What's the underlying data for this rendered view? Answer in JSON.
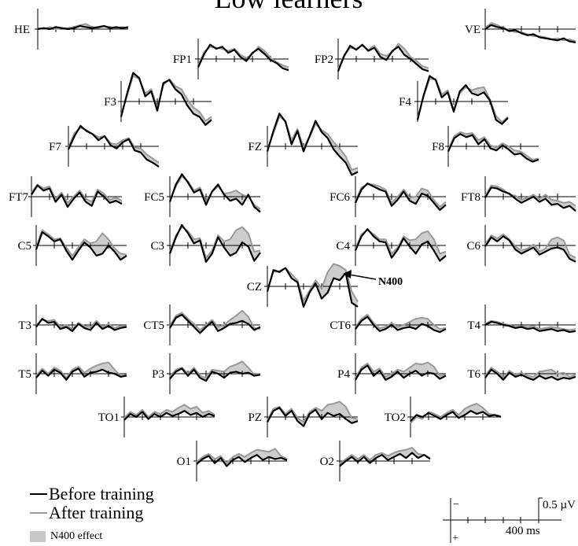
{
  "chart_data": {
    "type": "line",
    "title": "Low learners",
    "series": [
      {
        "name": "Before training",
        "color": "#000000"
      },
      {
        "name": "After training",
        "color": "#999999"
      }
    ],
    "shading": {
      "name": "N400 effect",
      "color": "#c8c8c8"
    },
    "annotation": "N400",
    "scale": {
      "amplitude_label": "0.5 µV",
      "time_label": "400 ms",
      "negative_sign": "−",
      "positive_sign": "+",
      "polarity": "negative up"
    },
    "channels": [
      {
        "name": "HE",
        "before": [
          0,
          0.1,
          0,
          0.2,
          0.1,
          0,
          0.1,
          0.3,
          0.2,
          0.1,
          0.2,
          0.3,
          0.1,
          0.2,
          0.1,
          0.2
        ],
        "after": [
          0.1,
          0,
          0.2,
          0,
          0.1,
          0.1,
          0.2,
          0.4,
          0.5,
          0.2,
          0.1,
          0.3,
          0.2,
          0.1,
          0.2,
          0.1
        ]
      },
      {
        "name": "VE",
        "before": [
          0,
          0.4,
          0.2,
          0.1,
          -0.2,
          -0.1,
          -0.4,
          -0.6,
          -0.5,
          -0.8,
          -0.9,
          -1.0,
          -1.1,
          -0.9,
          -1.2,
          -1.3
        ],
        "after": [
          0.1,
          0.6,
          0.4,
          0.1,
          -0.1,
          -0.3,
          -0.3,
          -0.5,
          -0.7,
          -0.7,
          -0.8,
          -1.0,
          -0.9,
          -1.1,
          -1.0,
          -1.2
        ]
      },
      {
        "name": "FP1",
        "before": [
          -0.8,
          0.5,
          1.4,
          1.0,
          1.2,
          0.6,
          0.9,
          0.2,
          -0.2,
          0.6,
          1.0,
          0.5,
          -0.1,
          -0.4,
          -0.9,
          -1.1
        ],
        "after": [
          -0.6,
          0.7,
          1.2,
          1.1,
          1.0,
          0.8,
          1.0,
          0.4,
          0.1,
          0.5,
          1.2,
          0.8,
          0.1,
          -0.3,
          -0.6,
          -0.8
        ]
      },
      {
        "name": "FP2",
        "before": [
          -1.2,
          0.3,
          1.3,
          0.9,
          1.4,
          0.8,
          1.1,
          0.2,
          -0.1,
          0.8,
          1.2,
          0.4,
          0.0,
          -0.5,
          -1.0,
          -1.2
        ],
        "after": [
          -1.0,
          0.4,
          1.1,
          1.0,
          1.3,
          0.9,
          1.3,
          0.5,
          0.3,
          0.7,
          1.5,
          1.0,
          0.2,
          -0.2,
          -0.7,
          -0.9
        ]
      },
      {
        "name": "F3",
        "before": [
          -1.5,
          0.8,
          2.8,
          2.3,
          0.5,
          1.0,
          -0.9,
          1.8,
          2.1,
          1.2,
          0.7,
          -0.4,
          -1.2,
          -1.5,
          -2.3,
          -1.8
        ],
        "after": [
          -1.3,
          0.6,
          2.5,
          2.2,
          0.8,
          1.2,
          -0.6,
          1.6,
          2.2,
          1.5,
          1.2,
          0.2,
          -0.6,
          -1.0,
          -1.9,
          -1.5
        ]
      },
      {
        "name": "F4",
        "before": [
          -1.8,
          0.6,
          2.5,
          2.1,
          0.4,
          0.9,
          -1.0,
          1.0,
          1.6,
          0.8,
          0.6,
          0.9,
          0.1,
          -1.8,
          -2.2,
          -1.6
        ],
        "after": [
          -1.6,
          0.5,
          2.2,
          2.2,
          0.7,
          1.1,
          -0.8,
          0.8,
          1.4,
          1.1,
          1.3,
          1.4,
          0.2,
          -1.4,
          -2.0,
          -1.5
        ]
      },
      {
        "name": "F7",
        "before": [
          -0.3,
          1.0,
          2.0,
          1.5,
          1.2,
          0.6,
          1.0,
          0.1,
          -0.2,
          0.4,
          0.7,
          -0.4,
          -0.6,
          -1.3,
          -1.6,
          -2.0
        ],
        "after": [
          -0.1,
          1.3,
          1.8,
          1.6,
          1.2,
          0.9,
          1.0,
          0.3,
          0.2,
          0.6,
          0.8,
          -0.1,
          -0.2,
          -0.8,
          -1.2,
          -1.6
        ]
      },
      {
        "name": "F8",
        "before": [
          -0.5,
          0.8,
          1.2,
          0.9,
          1.1,
          0.2,
          0.7,
          -0.2,
          -0.4,
          0.1,
          -0.3,
          -0.8,
          -0.7,
          -1.2,
          -1.5,
          -1.3
        ],
        "after": [
          -0.3,
          1.0,
          1.4,
          1.2,
          1.3,
          0.6,
          0.9,
          0.1,
          -0.1,
          0.3,
          0.0,
          -0.4,
          -0.5,
          -0.9,
          -1.3,
          -1.2
        ]
      },
      {
        "name": "FZ",
        "before": [
          -0.5,
          1.5,
          3.2,
          2.4,
          0.2,
          1.5,
          -0.5,
          1.0,
          2.5,
          1.4,
          0.8,
          -0.3,
          -1.0,
          -1.6,
          -2.8,
          -2.5
        ],
        "after": [
          -0.3,
          1.3,
          2.9,
          2.5,
          0.6,
          1.7,
          -0.1,
          0.9,
          2.2,
          1.6,
          1.2,
          0.4,
          -0.2,
          -1.0,
          -2.3,
          -2.1
        ]
      },
      {
        "name": "FT7",
        "before": [
          0.2,
          1.1,
          0.6,
          0.8,
          -0.5,
          0.2,
          -1.0,
          -0.2,
          0.4,
          -0.5,
          -0.9,
          0.5,
          0.0,
          -0.6,
          -0.4,
          -0.7
        ],
        "after": [
          0.4,
          1.2,
          0.8,
          1.0,
          -0.2,
          0.4,
          -0.6,
          0.0,
          0.6,
          -0.2,
          -0.5,
          0.7,
          0.3,
          -0.3,
          -0.1,
          -0.4
        ]
      },
      {
        "name": "FC5",
        "before": [
          -0.5,
          1.2,
          2.2,
          1.4,
          0.4,
          0.7,
          -0.8,
          0.5,
          1.2,
          0.2,
          -0.4,
          -0.2,
          -0.8,
          0.2,
          -1.0,
          -1.5
        ],
        "after": [
          -0.3,
          1.0,
          2.0,
          1.5,
          0.6,
          0.9,
          -0.5,
          0.5,
          1.0,
          0.3,
          0.4,
          0.6,
          0.2,
          0.0,
          -0.8,
          -1.2
        ]
      },
      {
        "name": "FC6",
        "before": [
          -0.6,
          0.7,
          1.3,
          1.0,
          0.7,
          0.5,
          -0.9,
          -0.3,
          0.5,
          -0.4,
          -0.7,
          0.3,
          0.1,
          -0.6,
          -1.3,
          -0.8
        ],
        "after": [
          -0.4,
          0.9,
          1.2,
          1.2,
          1.0,
          0.7,
          -0.6,
          0.0,
          0.7,
          -0.1,
          0.0,
          0.8,
          0.6,
          -0.3,
          -1.0,
          -0.5
        ]
      },
      {
        "name": "FT8",
        "before": [
          -0.1,
          0.9,
          0.8,
          0.5,
          0.3,
          -0.2,
          -0.6,
          -0.3,
          0.0,
          -0.5,
          -0.2,
          -0.8,
          -0.7,
          -1.1,
          -0.9,
          -1.4
        ],
        "after": [
          0.1,
          1.1,
          1.0,
          0.7,
          0.2,
          0.1,
          -0.3,
          -0.1,
          0.2,
          -0.2,
          0.2,
          -0.3,
          -0.4,
          -0.6,
          -0.5,
          -0.9
        ]
      },
      {
        "name": "C5",
        "before": [
          -0.4,
          1.3,
          0.9,
          0.4,
          0.6,
          -0.5,
          -1.4,
          -0.5,
          0.3,
          -0.2,
          -1.0,
          -0.8,
          0.0,
          -0.6,
          -1.4,
          -1.0
        ],
        "after": [
          -0.2,
          1.5,
          1.1,
          0.6,
          0.7,
          -0.2,
          -1.0,
          -0.2,
          0.6,
          0.2,
          0.4,
          1.2,
          0.6,
          -0.3,
          -0.8,
          -0.9
        ]
      },
      {
        "name": "C3",
        "before": [
          -0.8,
          0.8,
          2.0,
          1.2,
          0.2,
          0.5,
          -1.6,
          -0.8,
          0.8,
          -0.2,
          -1.0,
          -0.7,
          0.3,
          -0.1,
          -1.5,
          -0.7
        ],
        "after": [
          -0.6,
          1.0,
          1.8,
          1.4,
          0.6,
          0.7,
          -1.2,
          -0.5,
          1.0,
          0.4,
          0.6,
          1.5,
          1.8,
          1.2,
          -0.6,
          -0.5
        ]
      },
      {
        "name": "C4",
        "before": [
          -0.5,
          0.9,
          1.6,
          0.9,
          0.4,
          0.3,
          -1.2,
          -0.4,
          0.7,
          -0.1,
          -0.8,
          0.1,
          0.4,
          -0.5,
          -1.5,
          -1.0
        ],
        "after": [
          -0.3,
          1.1,
          1.5,
          1.1,
          0.6,
          0.6,
          -0.8,
          -0.2,
          0.9,
          0.5,
          0.6,
          1.2,
          1.4,
          0.6,
          -0.8,
          -0.6
        ]
      },
      {
        "name": "C6",
        "before": [
          -0.1,
          0.8,
          0.4,
          0.9,
          0.5,
          -0.4,
          -0.8,
          -0.5,
          -0.2,
          -0.9,
          -0.6,
          -0.3,
          -0.2,
          -0.4,
          -1.3,
          -1.6
        ],
        "after": [
          0.1,
          1.0,
          0.7,
          1.1,
          0.6,
          -0.1,
          -0.5,
          -0.3,
          0.1,
          -0.6,
          -0.3,
          0.6,
          0.8,
          0.5,
          -0.9,
          -1.2
        ]
      },
      {
        "name": "CZ",
        "before": [
          -0.5,
          1.6,
          1.4,
          1.8,
          0.8,
          0.4,
          -2.0,
          -0.6,
          0.3,
          -1.2,
          -0.6,
          0.8,
          0.6,
          1.3,
          -1.6,
          -2.0
        ],
        "after": [
          -0.3,
          1.4,
          1.5,
          1.8,
          1.2,
          0.6,
          -1.4,
          -0.4,
          0.6,
          -0.2,
          1.4,
          2.2,
          2.0,
          1.6,
          -0.5,
          -1.5
        ]
      },
      {
        "name": "T3",
        "before": [
          -0.2,
          0.6,
          0.2,
          0.3,
          -0.4,
          -0.2,
          -0.6,
          0.1,
          -0.3,
          -0.5,
          0.2,
          -0.4,
          -0.1,
          -0.5,
          -0.3,
          -0.2
        ],
        "after": [
          0.0,
          0.5,
          0.4,
          0.5,
          -0.2,
          0.0,
          -0.4,
          0.2,
          -0.1,
          -0.2,
          0.4,
          -0.2,
          0.1,
          -0.3,
          -0.1,
          -0.1
        ]
      },
      {
        "name": "CT5",
        "before": [
          -0.3,
          0.7,
          1.0,
          0.4,
          -0.2,
          -0.8,
          -0.2,
          0.3,
          -0.6,
          -0.3,
          0.1,
          0.2,
          0.4,
          0.1,
          -0.5,
          -0.2
        ],
        "after": [
          -0.1,
          0.9,
          1.2,
          0.6,
          0.1,
          -0.5,
          0.0,
          0.5,
          -0.2,
          0.0,
          0.5,
          0.9,
          1.4,
          0.8,
          -0.3,
          -0.4
        ]
      },
      {
        "name": "CT6",
        "before": [
          -0.4,
          0.4,
          0.8,
          0.0,
          -0.6,
          -0.4,
          0.0,
          -0.5,
          -0.3,
          -0.2,
          -0.4,
          0.1,
          -0.1,
          -0.5,
          -0.7,
          -0.4
        ],
        "after": [
          -0.2,
          0.6,
          1.0,
          0.2,
          -0.3,
          -0.2,
          0.2,
          -0.2,
          0.0,
          0.3,
          0.6,
          0.7,
          0.6,
          0.0,
          -0.4,
          -0.3
        ]
      },
      {
        "name": "T4",
        "before": [
          0.0,
          0.3,
          0.2,
          0.0,
          -0.1,
          -0.3,
          -0.2,
          -0.4,
          -0.3,
          -0.6,
          -0.5,
          -0.4,
          -0.6,
          -0.5,
          -0.7,
          -0.6
        ],
        "after": [
          0.1,
          0.4,
          0.3,
          0.1,
          0.0,
          -0.2,
          -0.1,
          -0.2,
          -0.1,
          -0.4,
          -0.3,
          -0.2,
          -0.3,
          -0.4,
          -0.5,
          -0.4
        ]
      },
      {
        "name": "T5",
        "before": [
          -0.4,
          0.3,
          -0.2,
          0.4,
          0.1,
          -0.6,
          0.2,
          0.5,
          -0.3,
          0.1,
          0.2,
          0.4,
          0.1,
          0.0,
          -0.3,
          -0.2
        ],
        "after": [
          -0.2,
          0.5,
          0.0,
          0.6,
          0.3,
          -0.4,
          0.4,
          0.7,
          0.1,
          0.5,
          0.8,
          1.0,
          1.1,
          0.4,
          -0.2,
          -0.1
        ]
      },
      {
        "name": "P3",
        "before": [
          -0.5,
          0.2,
          0.5,
          -0.2,
          0.4,
          -0.4,
          -0.7,
          0.2,
          0.0,
          -0.4,
          0.1,
          0.2,
          0.0,
          0.1,
          -0.2,
          -0.1
        ],
        "after": [
          -0.3,
          0.4,
          0.6,
          0.0,
          0.6,
          -0.2,
          -0.4,
          0.4,
          0.3,
          0.2,
          0.7,
          0.9,
          1.2,
          0.6,
          -0.1,
          0.0
        ]
      },
      {
        "name": "P4",
        "before": [
          -0.6,
          0.4,
          0.8,
          -0.2,
          0.3,
          -0.6,
          -0.3,
          0.2,
          -0.4,
          0.0,
          0.3,
          -0.2,
          0.1,
          0.0,
          -0.5,
          -0.2
        ],
        "after": [
          -0.4,
          0.6,
          1.0,
          0.2,
          0.5,
          -0.3,
          0.0,
          0.4,
          0.2,
          0.6,
          1.0,
          0.9,
          1.1,
          0.7,
          -0.2,
          -0.1
        ]
      },
      {
        "name": "T6",
        "before": [
          -0.4,
          0.4,
          0.0,
          -0.6,
          0.1,
          -0.3,
          -0.1,
          -0.4,
          -0.6,
          -0.2,
          -0.5,
          -0.3,
          -0.6,
          -0.4,
          -0.5,
          -0.3
        ],
        "after": [
          -0.2,
          0.6,
          0.2,
          -0.4,
          0.3,
          -0.1,
          0.1,
          -0.2,
          -0.3,
          0.2,
          0.3,
          0.4,
          0.0,
          0.1,
          -0.3,
          -0.1
        ]
      },
      {
        "name": "TO1",
        "before": [
          -0.3,
          0.3,
          0.0,
          0.5,
          -0.2,
          0.3,
          0.0,
          0.4,
          0.1,
          0.3,
          0.6,
          0.2,
          0.4,
          0.0,
          0.3,
          0.1
        ],
        "after": [
          -0.1,
          0.5,
          0.2,
          0.7,
          0.0,
          0.5,
          0.3,
          0.7,
          0.5,
          0.9,
          1.2,
          0.8,
          1.0,
          0.4,
          0.6,
          0.2
        ]
      },
      {
        "name": "PZ",
        "before": [
          -0.5,
          0.6,
          0.9,
          0.1,
          0.6,
          -0.4,
          -0.9,
          0.3,
          0.7,
          -0.2,
          0.4,
          0.1,
          0.3,
          -0.2,
          -0.6,
          -0.4
        ],
        "after": [
          -0.3,
          0.8,
          1.0,
          0.3,
          0.8,
          -0.1,
          -0.5,
          0.5,
          0.9,
          0.6,
          1.2,
          1.3,
          1.5,
          1.0,
          -0.1,
          -0.2
        ]
      },
      {
        "name": "TO2",
        "before": [
          -0.4,
          0.2,
          0.0,
          0.4,
          0.1,
          -0.2,
          0.2,
          0.5,
          -0.1,
          0.2,
          0.6,
          0.3,
          0.5,
          0.1,
          0.2,
          0.0
        ],
        "after": [
          -0.6,
          0.0,
          -0.2,
          0.5,
          0.3,
          0.0,
          0.4,
          0.7,
          0.2,
          0.8,
          1.1,
          1.3,
          0.9,
          0.3,
          0.2,
          0.1
        ]
      },
      {
        "name": "O1",
        "before": [
          -0.3,
          0.2,
          0.5,
          -0.2,
          0.3,
          -0.5,
          0.1,
          0.4,
          -0.1,
          0.3,
          0.6,
          0.1,
          0.4,
          0.2,
          0.3,
          0.1
        ],
        "after": [
          -0.1,
          0.4,
          0.7,
          0.2,
          0.5,
          -0.2,
          0.4,
          0.7,
          0.4,
          0.8,
          1.1,
          1.0,
          0.9,
          1.2,
          0.5,
          0.2
        ]
      },
      {
        "name": "O2",
        "before": [
          -0.5,
          0.0,
          0.4,
          -0.1,
          0.4,
          -0.2,
          0.3,
          0.6,
          0.1,
          0.4,
          0.7,
          0.3,
          0.8,
          0.3,
          0.6,
          0.2
        ],
        "after": [
          -0.3,
          0.2,
          0.6,
          0.2,
          0.6,
          0.1,
          0.6,
          0.8,
          0.5,
          0.8,
          1.0,
          1.1,
          1.3,
          0.7,
          0.6,
          0.3
        ]
      }
    ]
  }
}
